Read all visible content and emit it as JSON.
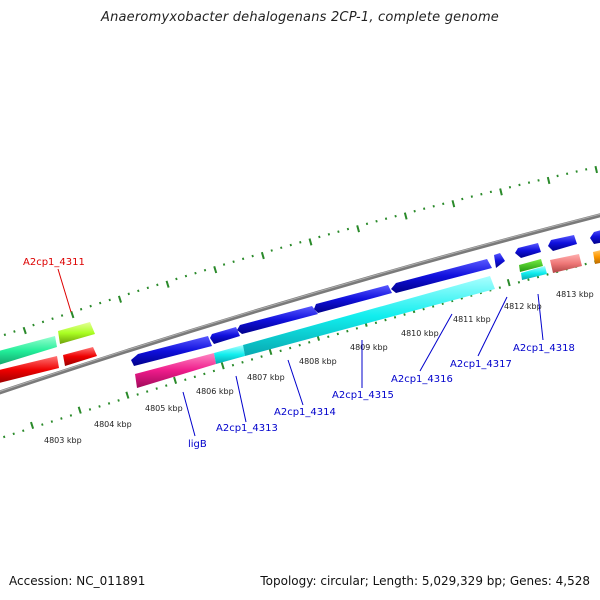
{
  "title": "Anaeromyxobacter dehalogenans 2CP-1, complete genome",
  "footer": {
    "accession": "Accession: NC_011891",
    "summary": "Topology: circular; Length: 5,029,329 bp; Genes: 4,528"
  },
  "kbp_labels": [
    "4803 kbp",
    "4804 kbp",
    "4805 kbp",
    "4806 kbp",
    "4807 kbp",
    "4808 kbp",
    "4809 kbp",
    "4810 kbp",
    "4811 kbp",
    "4812 kbp",
    "4813 kbp"
  ],
  "gene_labels": [
    "A2cp1_4311",
    "ligB",
    "A2cp1_4313",
    "A2cp1_4314",
    "A2cp1_4315",
    "A2cp1_4316",
    "A2cp1_4317",
    "A2cp1_4318"
  ],
  "colors": {
    "red_label": "#dd0000",
    "blue_label": "#0000cc",
    "backbone": "#888888",
    "tick": "#2a8a2a",
    "gene_blue": "#1010dd",
    "gene_cyan": "#11eeee",
    "gene_magenta": "#ee1b8a",
    "gene_red": "#ee0000",
    "gene_green": "#22ee99",
    "gene_lime": "#aaff22",
    "gene_pink": "#ee7777",
    "gene_orange": "#ff9900"
  }
}
